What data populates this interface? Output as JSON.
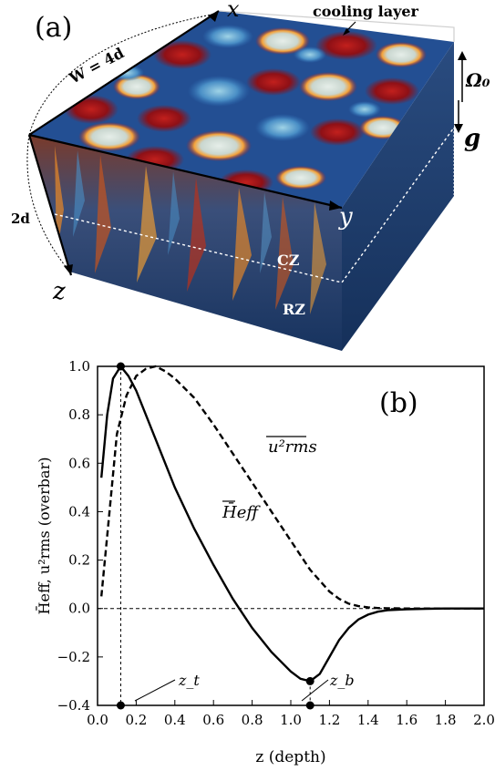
{
  "panel_a": {
    "label": "(a)",
    "cooling_layer_label": "cooling layer",
    "width_label": "W = 4d",
    "depth_label": "2d",
    "axis_x_label": "x",
    "axis_y_label": "y",
    "axis_z_label": "z",
    "omega_label": "Ω₀",
    "gravity_label": "g",
    "cz_label": "CZ",
    "rz_label": "RZ",
    "colors": {
      "deep_blue": "#1b3a78",
      "mid_blue": "#2f6fb5",
      "red": "#b0141a",
      "orange": "#f08a24",
      "pale": "#dfe9e6"
    }
  },
  "chart_data": {
    "type": "line",
    "panel_label": "(b)",
    "title": "",
    "xlabel": "z (depth)",
    "ylabel": "H̄eff, u²rms (overbar)",
    "xlim": [
      0.0,
      2.0
    ],
    "ylim": [
      -0.4,
      1.0
    ],
    "x_ticks": [
      "0.0",
      "0.2",
      "0.4",
      "0.6",
      "0.8",
      "1.0",
      "1.2",
      "1.4",
      "1.6",
      "1.8",
      "2.0"
    ],
    "y_ticks": [
      "−0.4",
      "−0.2",
      "0.0",
      "0.2",
      "0.4",
      "0.6",
      "0.8",
      "1.0"
    ],
    "grid": false,
    "series": [
      {
        "name": "H_eff",
        "style": "solid",
        "x": [
          0.02,
          0.05,
          0.08,
          0.12,
          0.16,
          0.2,
          0.3,
          0.4,
          0.5,
          0.6,
          0.7,
          0.8,
          0.9,
          1.0,
          1.05,
          1.1,
          1.15,
          1.2,
          1.25,
          1.3,
          1.35,
          1.4,
          1.45,
          1.5,
          1.6,
          1.7,
          1.8,
          1.9,
          2.0
        ],
        "y": [
          0.54,
          0.8,
          0.95,
          1.0,
          0.96,
          0.9,
          0.7,
          0.5,
          0.33,
          0.18,
          0.04,
          -0.08,
          -0.18,
          -0.26,
          -0.29,
          -0.3,
          -0.27,
          -0.2,
          -0.13,
          -0.08,
          -0.045,
          -0.025,
          -0.013,
          -0.007,
          -0.003,
          -0.001,
          0.0,
          0.0,
          0.0
        ]
      },
      {
        "name": "u_rms^2",
        "style": "dashed",
        "x": [
          0.02,
          0.05,
          0.1,
          0.15,
          0.2,
          0.25,
          0.3,
          0.35,
          0.4,
          0.5,
          0.6,
          0.7,
          0.8,
          0.9,
          1.0,
          1.1,
          1.2,
          1.25,
          1.3,
          1.35,
          1.4,
          1.45,
          1.5,
          1.6,
          1.7,
          1.8,
          1.9,
          2.0
        ],
        "y": [
          0.05,
          0.3,
          0.72,
          0.88,
          0.96,
          0.99,
          1.0,
          0.98,
          0.95,
          0.87,
          0.76,
          0.64,
          0.52,
          0.4,
          0.28,
          0.16,
          0.07,
          0.04,
          0.02,
          0.01,
          0.005,
          0.002,
          0.001,
          0.0,
          0.0,
          0.0,
          0.0,
          0.0
        ]
      }
    ],
    "series_labels": {
      "heff": "H̄eff",
      "urms": "u²rms"
    },
    "markers": [
      {
        "name": "max",
        "x": 0.12,
        "y": 1.0
      },
      {
        "name": "min",
        "x": 1.1,
        "y": -0.3
      },
      {
        "name": "z_t",
        "x": 0.12,
        "y": -0.4
      },
      {
        "name": "z_b",
        "x": 1.1,
        "y": -0.4
      }
    ],
    "annotations": {
      "z_t": "z_t",
      "z_b": "z_b"
    },
    "zero_line": 0.0
  }
}
